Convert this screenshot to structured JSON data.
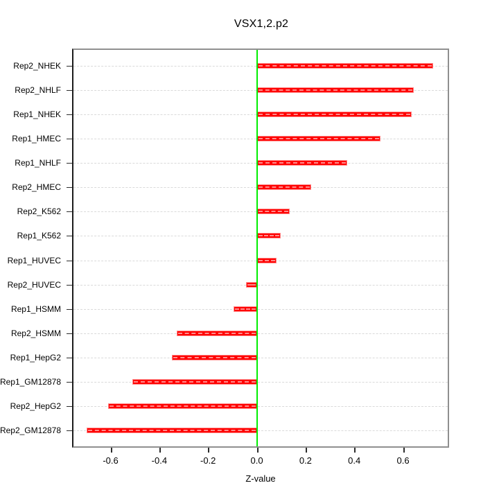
{
  "title": "VSX1,2.p2",
  "chart_data": {
    "type": "bar",
    "orientation": "horizontal",
    "title": "VSX1,2.p2",
    "xlabel": "Z-value",
    "ylabel": "",
    "categories": [
      "Rep2_NHEK",
      "Rep2_NHLF",
      "Rep1_NHEK",
      "Rep1_HMEC",
      "Rep1_NHLF",
      "Rep2_HMEC",
      "Rep2_K562",
      "Rep1_K562",
      "Rep1_HUVEC",
      "Rep2_HUVEC",
      "Rep1_HSMM",
      "Rep2_HSMM",
      "Rep1_HepG2",
      "Rep1_GM12878",
      "Rep2_HepG2",
      "Rep2_GM12878"
    ],
    "values": [
      0.73,
      0.65,
      0.64,
      0.51,
      0.375,
      0.225,
      0.135,
      0.1,
      0.08,
      -0.045,
      -0.095,
      -0.33,
      -0.35,
      -0.515,
      -0.615,
      -0.705
    ],
    "xlim": [
      -0.758,
      0.789
    ],
    "x_ticks": [
      {
        "label": "-0.6",
        "value": -0.6
      },
      {
        "label": "-0.4",
        "value": -0.4
      },
      {
        "label": "-0.2",
        "value": -0.2
      },
      {
        "label": "0.0",
        "value": 0.0
      },
      {
        "label": "0.2",
        "value": 0.2
      },
      {
        "label": "0.4",
        "value": 0.4
      },
      {
        "label": "0.6",
        "value": 0.6
      }
    ],
    "grid": true,
    "legend": "none",
    "colors": {
      "bar": "#ff0000",
      "bar_edge": "#ff8a8a",
      "zero_line": "#00ee00",
      "gridline": "#d9d9d9",
      "frame": "#8f8f8f"
    }
  }
}
